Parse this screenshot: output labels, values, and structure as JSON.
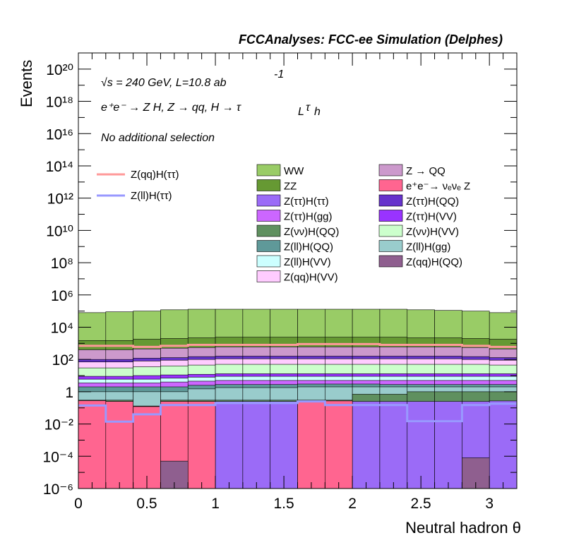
{
  "header": {
    "title": "FCCAnalyses: FCC-ee Simulation (Delphes)"
  },
  "annotations": {
    "line1_sqrt": "√s = 240 GeV, L=10.8 ab",
    "line1_sup": "-1",
    "line2_main": "e⁺e⁻ → Z H, Z  → qq, H  → τ",
    "line2_subL": "L",
    "line2_tau": "τ",
    "line2_subh": "h",
    "line3": "No additional selection"
  },
  "chart_data": {
    "type": "bar",
    "stacked": true,
    "title": "FCCAnalyses: FCC-ee Simulation (Delphes)",
    "xlabel": "Neutral hadron θ",
    "ylabel": "Events",
    "xlim": [
      0,
      3.2
    ],
    "ylim": [
      1e-06,
      1e+21
    ],
    "ylog": true,
    "bin_edges": [
      0,
      0.2,
      0.4,
      0.6,
      0.8,
      1.0,
      1.2,
      1.4,
      1.6,
      1.8,
      2.0,
      2.2,
      2.4,
      2.6,
      2.8,
      3.0,
      3.2
    ],
    "x_ticks": [
      "0",
      "0.5",
      "1",
      "1.5",
      "2",
      "2.5",
      "3"
    ],
    "x_tick_values": [
      0,
      0.5,
      1,
      1.5,
      2,
      2.5,
      3
    ],
    "y_ticks": [
      "10⁻⁶",
      "10⁻⁴",
      "10⁻²",
      "1",
      "10²",
      "10⁴",
      "10⁶",
      "10⁸",
      "10¹⁰",
      "10¹²",
      "10¹⁴",
      "10¹⁶",
      "10¹⁸",
      "10²⁰"
    ],
    "y_tick_exponents": [
      -6,
      -4,
      -2,
      0,
      2,
      4,
      6,
      8,
      10,
      12,
      14,
      16,
      18,
      20
    ],
    "stack_tops": [
      {
        "name": "Z(qq)H(QQ)",
        "color": "#8f5f8f",
        "values": [
          1e-06,
          1e-06,
          1e-06,
          5e-05,
          1e-06,
          1e-06,
          1e-06,
          1e-06,
          1e-06,
          1e-06,
          1e-06,
          1e-06,
          1e-06,
          1e-06,
          8e-05,
          1e-06
        ]
      },
      {
        "name": "e⁺e⁻→ νₑνₑ Z",
        "color": "#ff6590",
        "values": [
          0.28,
          0.25,
          0.12,
          0.25,
          0.25,
          1e-06,
          1e-06,
          1e-06,
          0.27,
          0.27,
          1e-06,
          1e-06,
          1e-06,
          1e-06,
          1e-06,
          1e-06
        ]
      },
      {
        "name": "Z(ττ)H(ττ)",
        "color": "#9b6bf7",
        "values": [
          0.28,
          0.25,
          0.12,
          0.25,
          0.25,
          0.25,
          0.25,
          0.25,
          0.27,
          0.27,
          0.25,
          0.25,
          0.25,
          0.25,
          0.25,
          0.27
        ]
      },
      {
        "name": "Z(νν)H(QQ)",
        "color": "#5f905f",
        "values": [
          0.3,
          0.3,
          0.13,
          0.3,
          0.3,
          0.3,
          0.3,
          0.3,
          0.3,
          0.3,
          0.7,
          0.7,
          1.0,
          1.0,
          1.0,
          1.0
        ]
      },
      {
        "name": "Z(ll)H(gg)",
        "color": "#99cccc",
        "values": [
          1.0,
          1.0,
          1.0,
          1.0,
          1.5,
          1.8,
          1.8,
          1.8,
          2.0,
          2.0,
          2.0,
          2.0,
          2.0,
          2.0,
          2.0,
          2.0
        ]
      },
      {
        "name": "Z(ll)H(QQ)",
        "color": "#5f9999",
        "values": [
          2.0,
          2.0,
          2.0,
          2.0,
          2.5,
          2.8,
          2.8,
          2.8,
          3.0,
          3.0,
          3.0,
          2.8,
          2.8,
          2.8,
          2.8,
          2.8
        ]
      },
      {
        "name": "Z(ττ)H(gg)",
        "color": "#cc66ff",
        "values": [
          3.5,
          3.5,
          3.5,
          4.0,
          4.5,
          5.0,
          5.0,
          5.0,
          5.0,
          5.0,
          5.0,
          5.0,
          5.0,
          5.0,
          5.0,
          5.0
        ]
      },
      {
        "name": "Z(ll)H(VV)",
        "color": "#ccffff",
        "values": [
          6,
          6,
          6,
          7,
          8,
          9,
          9,
          9,
          9,
          9,
          9,
          9,
          9,
          9,
          9,
          9
        ]
      },
      {
        "name": "Z(ττ)H(VV)",
        "color": "#9933ff",
        "values": [
          9,
          9,
          10,
          11,
          12,
          13,
          13,
          13,
          13,
          13,
          13,
          13,
          13,
          13,
          13,
          13
        ]
      },
      {
        "name": "Z(νν)H(VV)",
        "color": "#ccffcc",
        "values": [
          30,
          30,
          35,
          40,
          45,
          50,
          50,
          50,
          50,
          50,
          50,
          50,
          50,
          50,
          50,
          45
        ]
      },
      {
        "name": "Z(qq)H(VV)",
        "color": "#ffccff",
        "values": [
          70,
          70,
          80,
          90,
          100,
          110,
          110,
          110,
          110,
          110,
          110,
          110,
          110,
          110,
          100,
          90
        ]
      },
      {
        "name": "Z(ττ)H(QQ)",
        "color": "#6633cc",
        "values": [
          100,
          100,
          120,
          130,
          150,
          160,
          160,
          160,
          160,
          160,
          160,
          160,
          160,
          160,
          150,
          130
        ]
      },
      {
        "name": "Z → QQ",
        "color": "#cc99cc",
        "values": [
          400,
          400,
          450,
          500,
          550,
          600,
          600,
          600,
          600,
          600,
          600,
          600,
          600,
          600,
          550,
          450
        ]
      },
      {
        "name": "ZZ",
        "color": "#669933",
        "values": [
          1500,
          1500,
          1800,
          2000,
          2200,
          2400,
          2400,
          2400,
          2400,
          2400,
          2400,
          2400,
          2200,
          2200,
          2000,
          1800
        ]
      },
      {
        "name": "WW",
        "color": "#99cc66",
        "values": [
          80000,
          90000,
          100000,
          120000,
          130000,
          130000,
          130000,
          130000,
          130000,
          130000,
          130000,
          130000,
          120000,
          110000,
          100000,
          80000
        ]
      }
    ],
    "lines": [
      {
        "name": "Z(qq)H(ττ)",
        "color": "#ff9999",
        "values": [
          700,
          700,
          600,
          700,
          800,
          800,
          800,
          800,
          900,
          900,
          900,
          800,
          800,
          800,
          700,
          600
        ]
      },
      {
        "name": "Z(ll)H(ττ)",
        "color": "#9999ff",
        "values": [
          0.14,
          0.014,
          0.04,
          0.15,
          0.15,
          0.2,
          0.2,
          0.2,
          0.25,
          0.15,
          0.15,
          0.15,
          0.015,
          0.015,
          0.15,
          0.18
        ]
      }
    ],
    "legend": {
      "placement": "top",
      "lines": [
        "Z(qq)H(ττ)",
        "Z(ll)H(ττ)"
      ],
      "col1": [
        "WW",
        "ZZ",
        "Z(ττ)H(ττ)",
        "Z(ττ)H(gg)",
        "Z(νν)H(QQ)",
        "Z(ll)H(QQ)",
        "Z(ll)H(VV)",
        "Z(qq)H(VV)"
      ],
      "col2": [
        "Z → QQ",
        "e⁺e⁻→ νₑνₑ Z",
        "Z(ττ)H(QQ)",
        "Z(ττ)H(VV)",
        "Z(νν)H(VV)",
        "Z(ll)H(gg)",
        "Z(qq)H(QQ)"
      ]
    }
  }
}
